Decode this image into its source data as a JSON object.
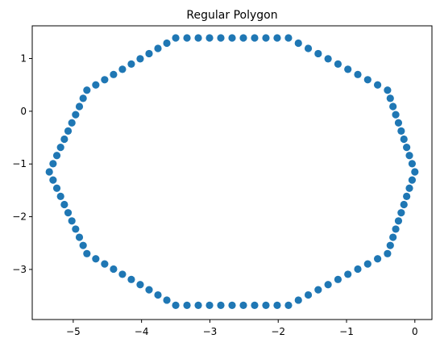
{
  "chart_data": {
    "type": "scatter",
    "title": "Regular Polygon",
    "xlabel": "",
    "ylabel": "",
    "xlim": [
      -5.6,
      0.25
    ],
    "ylim": [
      -3.95,
      1.62
    ],
    "x_ticks": [
      -5,
      -4,
      -3,
      -2,
      -1,
      0
    ],
    "x_tick_labels": [
      "−5",
      "−4",
      "−3",
      "−2",
      "−1",
      "0"
    ],
    "y_ticks": [
      1,
      0,
      -1,
      -2,
      -3
    ],
    "y_tick_labels": [
      "1",
      "0",
      "−1",
      "−2",
      "−3"
    ],
    "grid": false,
    "legend": "none",
    "marker_color": "#1f77b4",
    "vertices": [
      [
        0.0,
        -1.15
      ],
      [
        -0.4,
        0.4
      ],
      [
        -1.85,
        1.39
      ],
      [
        -3.5,
        1.39
      ],
      [
        -4.8,
        0.4
      ],
      [
        -5.35,
        -1.15
      ],
      [
        -4.8,
        -2.7
      ],
      [
        -3.5,
        -3.68
      ],
      [
        -1.85,
        -3.68
      ],
      [
        -0.4,
        -2.7
      ]
    ],
    "points_per_edge": 10
  }
}
